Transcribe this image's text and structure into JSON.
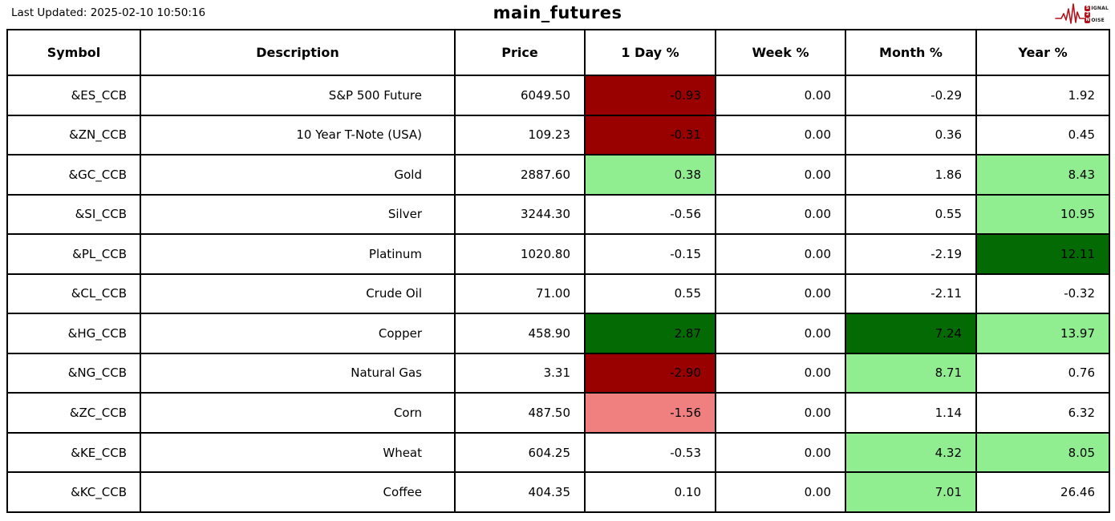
{
  "meta": {
    "last_updated": "Last Updated: 2025-02-10 10:50:16",
    "title": "main_futures"
  },
  "logo": {
    "line1_badge": "S",
    "line1_rest": "IGNAL",
    "line2_badge": "2",
    "line2_rest": "",
    "line3_badge": "N",
    "line3_rest": "OISE",
    "accent_color": "#b5121b"
  },
  "tones": {
    "none": "#ffffff",
    "strong_negative": "#990000",
    "mild_negative": "#f08080",
    "mild_positive": "#90ee90",
    "strong_positive": "#046b04"
  },
  "table": {
    "columns": [
      {
        "key": "symbol",
        "label": "Symbol"
      },
      {
        "key": "description",
        "label": "Description"
      },
      {
        "key": "price",
        "label": "Price"
      },
      {
        "key": "day-pct",
        "label": "1 Day %"
      },
      {
        "key": "week-pct",
        "label": "Week %"
      },
      {
        "key": "month-pct",
        "label": "Month %"
      },
      {
        "key": "year-pct",
        "label": "Year %"
      }
    ],
    "rows": [
      {
        "cells": [
          {
            "value": "&ES_CCB",
            "tone": "none"
          },
          {
            "value": "S&P 500 Future",
            "tone": "none"
          },
          {
            "value": "6049.50",
            "tone": "none"
          },
          {
            "value": "-0.93",
            "tone": "strong_negative"
          },
          {
            "value": "0.00",
            "tone": "none"
          },
          {
            "value": "-0.29",
            "tone": "none"
          },
          {
            "value": "1.92",
            "tone": "none"
          }
        ]
      },
      {
        "cells": [
          {
            "value": "&ZN_CCB",
            "tone": "none"
          },
          {
            "value": "10 Year T-Note (USA)",
            "tone": "none"
          },
          {
            "value": "109.23",
            "tone": "none"
          },
          {
            "value": "-0.31",
            "tone": "strong_negative"
          },
          {
            "value": "0.00",
            "tone": "none"
          },
          {
            "value": "0.36",
            "tone": "none"
          },
          {
            "value": "0.45",
            "tone": "none"
          }
        ]
      },
      {
        "cells": [
          {
            "value": "&GC_CCB",
            "tone": "none"
          },
          {
            "value": "Gold",
            "tone": "none"
          },
          {
            "value": "2887.60",
            "tone": "none"
          },
          {
            "value": "0.38",
            "tone": "mild_positive"
          },
          {
            "value": "0.00",
            "tone": "none"
          },
          {
            "value": "1.86",
            "tone": "none"
          },
          {
            "value": "8.43",
            "tone": "mild_positive"
          }
        ]
      },
      {
        "cells": [
          {
            "value": "&SI_CCB",
            "tone": "none"
          },
          {
            "value": "Silver",
            "tone": "none"
          },
          {
            "value": "3244.30",
            "tone": "none"
          },
          {
            "value": "-0.56",
            "tone": "none"
          },
          {
            "value": "0.00",
            "tone": "none"
          },
          {
            "value": "0.55",
            "tone": "none"
          },
          {
            "value": "10.95",
            "tone": "mild_positive"
          }
        ]
      },
      {
        "cells": [
          {
            "value": "&PL_CCB",
            "tone": "none"
          },
          {
            "value": "Platinum",
            "tone": "none"
          },
          {
            "value": "1020.80",
            "tone": "none"
          },
          {
            "value": "-0.15",
            "tone": "none"
          },
          {
            "value": "0.00",
            "tone": "none"
          },
          {
            "value": "-2.19",
            "tone": "none"
          },
          {
            "value": "12.11",
            "tone": "strong_positive"
          }
        ]
      },
      {
        "cells": [
          {
            "value": "&CL_CCB",
            "tone": "none"
          },
          {
            "value": "Crude Oil",
            "tone": "none"
          },
          {
            "value": "71.00",
            "tone": "none"
          },
          {
            "value": "0.55",
            "tone": "none"
          },
          {
            "value": "0.00",
            "tone": "none"
          },
          {
            "value": "-2.11",
            "tone": "none"
          },
          {
            "value": "-0.32",
            "tone": "none"
          }
        ]
      },
      {
        "cells": [
          {
            "value": "&HG_CCB",
            "tone": "none"
          },
          {
            "value": "Copper",
            "tone": "none"
          },
          {
            "value": "458.90",
            "tone": "none"
          },
          {
            "value": "2.87",
            "tone": "strong_positive"
          },
          {
            "value": "0.00",
            "tone": "none"
          },
          {
            "value": "7.24",
            "tone": "strong_positive"
          },
          {
            "value": "13.97",
            "tone": "mild_positive"
          }
        ]
      },
      {
        "cells": [
          {
            "value": "&NG_CCB",
            "tone": "none"
          },
          {
            "value": "Natural Gas",
            "tone": "none"
          },
          {
            "value": "3.31",
            "tone": "none"
          },
          {
            "value": "-2.90",
            "tone": "strong_negative"
          },
          {
            "value": "0.00",
            "tone": "none"
          },
          {
            "value": "8.71",
            "tone": "mild_positive"
          },
          {
            "value": "0.76",
            "tone": "none"
          }
        ]
      },
      {
        "cells": [
          {
            "value": "&ZC_CCB",
            "tone": "none"
          },
          {
            "value": "Corn",
            "tone": "none"
          },
          {
            "value": "487.50",
            "tone": "none"
          },
          {
            "value": "-1.56",
            "tone": "mild_negative"
          },
          {
            "value": "0.00",
            "tone": "none"
          },
          {
            "value": "1.14",
            "tone": "none"
          },
          {
            "value": "6.32",
            "tone": "none"
          }
        ]
      },
      {
        "cells": [
          {
            "value": "&KE_CCB",
            "tone": "none"
          },
          {
            "value": "Wheat",
            "tone": "none"
          },
          {
            "value": "604.25",
            "tone": "none"
          },
          {
            "value": "-0.53",
            "tone": "none"
          },
          {
            "value": "0.00",
            "tone": "none"
          },
          {
            "value": "4.32",
            "tone": "mild_positive"
          },
          {
            "value": "8.05",
            "tone": "mild_positive"
          }
        ]
      },
      {
        "cells": [
          {
            "value": "&KC_CCB",
            "tone": "none"
          },
          {
            "value": "Coffee",
            "tone": "none"
          },
          {
            "value": "404.35",
            "tone": "none"
          },
          {
            "value": "0.10",
            "tone": "none"
          },
          {
            "value": "0.00",
            "tone": "none"
          },
          {
            "value": "7.01",
            "tone": "mild_positive"
          },
          {
            "value": "26.46",
            "tone": "none"
          }
        ]
      }
    ]
  },
  "chart_data": {
    "type": "table",
    "title": "main_futures",
    "last_updated": "2025-02-10 10:50:16",
    "columns": [
      "Symbol",
      "Description",
      "Price",
      "1 Day %",
      "Week %",
      "Month %",
      "Year %"
    ],
    "rows": [
      [
        "&ES_CCB",
        "S&P 500 Future",
        6049.5,
        -0.93,
        0.0,
        -0.29,
        1.92
      ],
      [
        "&ZN_CCB",
        "10 Year T-Note (USA)",
        109.23,
        -0.31,
        0.0,
        0.36,
        0.45
      ],
      [
        "&GC_CCB",
        "Gold",
        2887.6,
        0.38,
        0.0,
        1.86,
        8.43
      ],
      [
        "&SI_CCB",
        "Silver",
        3244.3,
        -0.56,
        0.0,
        0.55,
        10.95
      ],
      [
        "&PL_CCB",
        "Platinum",
        1020.8,
        -0.15,
        0.0,
        -2.19,
        12.11
      ],
      [
        "&CL_CCB",
        "Crude Oil",
        71.0,
        0.55,
        0.0,
        -2.11,
        -0.32
      ],
      [
        "&HG_CCB",
        "Copper",
        458.9,
        2.87,
        0.0,
        7.24,
        13.97
      ],
      [
        "&NG_CCB",
        "Natural Gas",
        3.31,
        -2.9,
        0.0,
        8.71,
        0.76
      ],
      [
        "&ZC_CCB",
        "Corn",
        487.5,
        -1.56,
        0.0,
        1.14,
        6.32
      ],
      [
        "&KE_CCB",
        "Wheat",
        604.25,
        -0.53,
        0.0,
        4.32,
        8.05
      ],
      [
        "&KC_CCB",
        "Coffee",
        404.35,
        0.1,
        0.0,
        7.01,
        26.46
      ]
    ],
    "cell_highlight_colors": {
      "dark_red": "#990000",
      "light_red": "#f08080",
      "light_green": "#90ee90",
      "dark_green": "#046b04"
    }
  }
}
